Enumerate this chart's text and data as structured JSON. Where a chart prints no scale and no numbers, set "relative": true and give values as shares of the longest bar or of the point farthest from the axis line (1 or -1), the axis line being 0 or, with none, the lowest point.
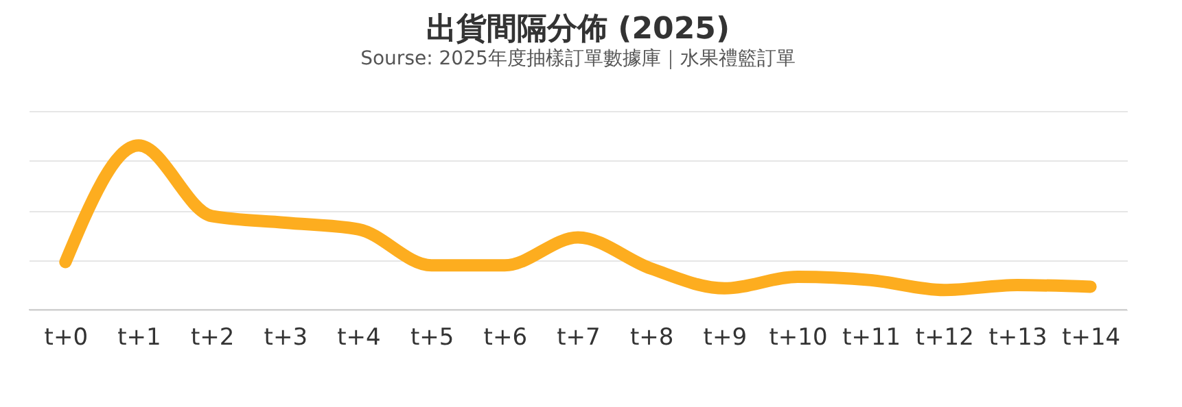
{
  "chart_data": {
    "type": "line",
    "title": "出貨間隔分佈 (2025)",
    "subtitle": "Sourse: 2025年度抽樣訂單數據庫｜水果禮籃訂單",
    "relative": true,
    "grid": "y",
    "marker": "none",
    "line_style": "solid",
    "categories": [
      "t+0",
      "t+1",
      "t+2",
      "t+3",
      "t+4",
      "t+5",
      "t+6",
      "t+7",
      "t+8",
      "t+9",
      "t+10",
      "t+11",
      "t+12",
      "t+13",
      "t+14"
    ],
    "series": [
      {
        "color": "#fdad1f",
        "values": [
          0.29,
          1,
          0.57,
          0.53,
          0.49,
          0.27,
          0.27,
          0.44,
          0.25,
          0.13,
          0.2,
          0.18,
          0.12,
          0.15,
          0.14
        ]
      }
    ]
  }
}
